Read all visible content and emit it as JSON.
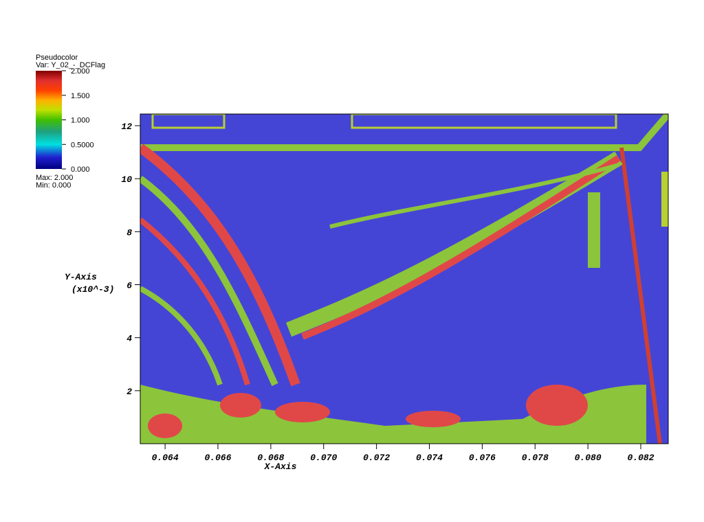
{
  "chart_data": {
    "type": "pseudocolor",
    "legend_title": "Pseudocolor",
    "variable_label": "Var: Y_02_-_DCFlag",
    "max_label": "Max: 2.000",
    "min_label": "Min: 0.000",
    "colorbar_lim": [
      0,
      2
    ],
    "colorbar_ticks": [
      {
        "value": 2,
        "label": "2.000"
      },
      {
        "value": 1.5,
        "label": "1.500"
      },
      {
        "value": 1,
        "label": "1.000"
      },
      {
        "value": 0.5,
        "label": "0.5000"
      },
      {
        "value": 0,
        "label": "0.000"
      }
    ],
    "x_label": "X-Axis",
    "y_label": "Y-Axis",
    "y_unit_label": "(x10^-3)",
    "xlim": [
      0.06306,
      0.08304
    ],
    "xticks": [
      {
        "value": 0.064,
        "label": "0.064"
      },
      {
        "value": 0.066,
        "label": "0.066"
      },
      {
        "value": 0.068,
        "label": "0.068"
      },
      {
        "value": 0.07,
        "label": "0.070"
      },
      {
        "value": 0.072,
        "label": "0.072"
      },
      {
        "value": 0.074,
        "label": "0.074"
      },
      {
        "value": 0.076,
        "label": "0.076"
      },
      {
        "value": 0.078,
        "label": "0.078"
      },
      {
        "value": 0.08,
        "label": "0.080"
      },
      {
        "value": 0.082,
        "label": "0.082"
      }
    ],
    "ylim": [
      0,
      12.44
    ],
    "yticks": [
      2,
      4,
      6,
      8,
      10,
      12
    ]
  }
}
